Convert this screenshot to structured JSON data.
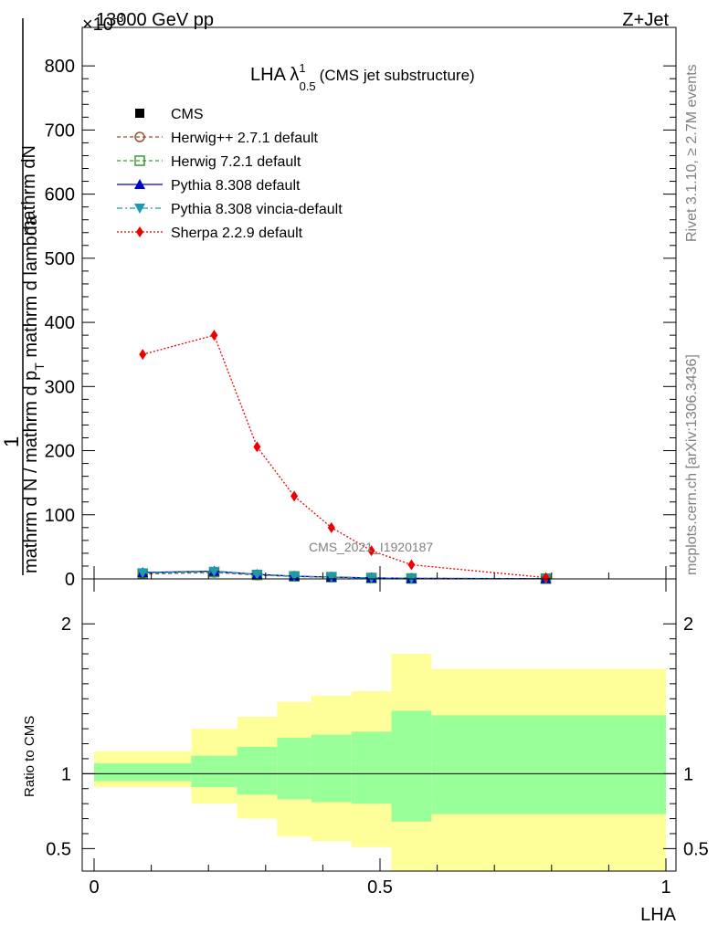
{
  "header": {
    "beam_label": "13000 GeV pp",
    "process_label": "Z+Jet",
    "scale_label": "×10",
    "scale_exponent": "-3"
  },
  "side_labels": {
    "rivet_info": "Rivet 3.1.10, ≥ 2.7M events",
    "mcplots_info": "mcplots.cern.ch [arXiv:1306.3436]"
  },
  "chart_data": [
    {
      "type": "line",
      "title_main": "LHA λ",
      "title_sup": "1",
      "title_sub": "0.5",
      "title_note": "(CMS jet substructure)",
      "watermark": "CMS_2021_I1920187",
      "ylabel_top": "1",
      "ylabel_numerator": "mathrm dN",
      "ylabel_den_main": "mathrm d N / mathrm d p",
      "ylabel_den_sub": "T",
      "ylabel_den_tail": " mathrm d lambda",
      "ylabel_den2": "mathrm d p",
      "ylabel_den2_sub": "T",
      "ylabel_den2_tail": " mathrm d p",
      "xlim": [
        0,
        1
      ],
      "ylim": [
        0,
        0.86
      ],
      "y_ticks": [
        0,
        0.1,
        0.2,
        0.3,
        0.4,
        0.5,
        0.6,
        0.7,
        0.8
      ],
      "y_tick_labels": [
        "0",
        "100",
        "200",
        "300",
        "400",
        "500",
        "600",
        "700",
        "800"
      ],
      "legend_position": "top-left",
      "series": [
        {
          "name": "CMS",
          "color": "#000000",
          "marker": "square",
          "x": [
            0.085,
            0.21,
            0.285,
            0.35,
            0.415,
            0.485,
            0.555,
            0.79
          ],
          "y": [
            0.0085,
            0.011,
            0.0065,
            0.004,
            0.0028,
            0.0015,
            0.0008,
            0.0003
          ]
        },
        {
          "name": "Herwig++ 2.7.1 default",
          "color": "#a0522d",
          "marker": "circle-open",
          "dash": "4,3",
          "x": [
            0.085,
            0.21,
            0.285,
            0.35,
            0.415,
            0.485,
            0.555,
            0.79
          ],
          "y": [
            0.0075,
            0.01,
            0.006,
            0.0038,
            0.0026,
            0.0014,
            0.0007,
            0.0003
          ]
        },
        {
          "name": "Herwig 7.2.1 default",
          "color": "#339933",
          "marker": "square-open",
          "dash": "4,3",
          "x": [
            0.085,
            0.21,
            0.285,
            0.35,
            0.415,
            0.485,
            0.555,
            0.79
          ],
          "y": [
            0.008,
            0.0105,
            0.0062,
            0.0039,
            0.0027,
            0.0014,
            0.0007,
            0.0003
          ]
        },
        {
          "name": "Pythia 8.308 default",
          "color": "#0000cc",
          "marker": "triangle-up",
          "dash": "",
          "x": [
            0.085,
            0.21,
            0.285,
            0.35,
            0.415,
            0.485,
            0.555,
            0.79
          ],
          "y": [
            0.01,
            0.012,
            0.007,
            0.0042,
            0.0029,
            0.0016,
            0.0008,
            0.0003
          ]
        },
        {
          "name": "Pythia 8.308 vincia-default",
          "color": "#1e99b0",
          "marker": "triangle-down",
          "dash": "6,3,2,3",
          "x": [
            0.085,
            0.21,
            0.285,
            0.35,
            0.415,
            0.485,
            0.555,
            0.79
          ],
          "y": [
            0.0095,
            0.0115,
            0.0068,
            0.0041,
            0.0028,
            0.0015,
            0.0008,
            0.0003
          ]
        },
        {
          "name": "Sherpa 2.2.9 default",
          "color": "#ee0000",
          "marker": "diamond",
          "dash": "2,2",
          "x": [
            0.085,
            0.21,
            0.285,
            0.35,
            0.415,
            0.485,
            0.555,
            0.79
          ],
          "y": [
            0.35,
            0.38,
            0.206,
            0.129,
            0.08,
            0.044,
            0.022,
            0.002
          ]
        }
      ]
    },
    {
      "type": "area",
      "ylabel": "Ratio to CMS",
      "xlabel": "LHA",
      "xlim": [
        0,
        1
      ],
      "ylim": [
        0.35,
        2.3
      ],
      "x_ticks": [
        0,
        0.5,
        1
      ],
      "x_tick_labels": [
        "0",
        "0.5",
        "1"
      ],
      "y_ticks": [
        0.5,
        1,
        2
      ],
      "y_tick_labels": [
        "0.5",
        "1",
        "2"
      ],
      "band_colors": {
        "inner": "#99ff99",
        "outer": "#ffff99"
      },
      "bins": [
        0,
        0.17,
        0.25,
        0.32,
        0.38,
        0.45,
        0.52,
        0.59,
        1.0
      ],
      "inner_lo": [
        0.95,
        0.91,
        0.86,
        0.83,
        0.81,
        0.8,
        0.68,
        0.73
      ],
      "inner_hi": [
        1.07,
        1.12,
        1.18,
        1.24,
        1.26,
        1.28,
        1.42,
        1.39
      ],
      "outer_lo": [
        0.91,
        0.8,
        0.7,
        0.58,
        0.55,
        0.51,
        0.3,
        0.3
      ],
      "outer_hi": [
        1.15,
        1.3,
        1.38,
        1.48,
        1.52,
        1.55,
        1.8,
        1.7
      ]
    }
  ]
}
